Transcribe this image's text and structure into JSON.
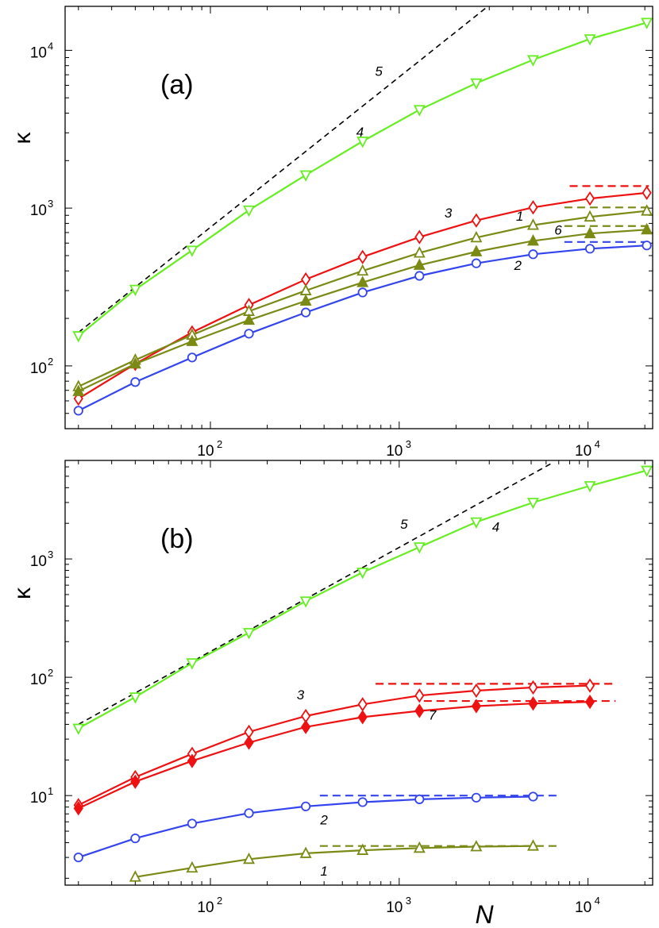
{
  "chart_data": [
    {
      "type": "line",
      "panel_label": "(a)",
      "ylabel": "κ",
      "xlabel": "",
      "x_scale": "log",
      "y_scale": "log",
      "xlim": [
        17,
        22000
      ],
      "ylim": [
        40,
        19000
      ],
      "x_ticks": [
        {
          "value": 100,
          "base": "10",
          "exp": "2"
        },
        {
          "value": 1000,
          "base": "10",
          "exp": "3"
        },
        {
          "value": 10000,
          "base": "10",
          "exp": "4"
        }
      ],
      "y_ticks": [
        {
          "value": 100,
          "base": "10",
          "exp": "2"
        },
        {
          "value": 1000,
          "base": "10",
          "exp": "3"
        },
        {
          "value": 10000,
          "base": "10",
          "exp": "4"
        }
      ],
      "series": [
        {
          "name": "4",
          "color": "#66ee22",
          "marker": "triangle-down-open",
          "x": [
            20,
            40,
            80,
            160,
            320,
            640,
            1280,
            2560,
            5120,
            10240,
            20480
          ],
          "y": [
            155,
            305,
            540,
            970,
            1620,
            2650,
            4200,
            6200,
            8700,
            11800,
            15000
          ]
        },
        {
          "name": "3",
          "color": "#ee1111",
          "marker": "diamond-open",
          "x": [
            20,
            40,
            80,
            160,
            320,
            640,
            1280,
            2560,
            5120,
            10240,
            20480
          ],
          "y": [
            62,
            103,
            163,
            243,
            353,
            490,
            655,
            835,
            1010,
            1150,
            1250
          ]
        },
        {
          "name": "1",
          "color": "#7a8a14",
          "marker": "triangle-up-open",
          "x": [
            20,
            40,
            80,
            160,
            320,
            640,
            1280,
            2560,
            5120,
            10240,
            20480
          ],
          "y": [
            74,
            109,
            157,
            222,
            300,
            400,
            520,
            650,
            780,
            880,
            960
          ]
        },
        {
          "name": "6",
          "color": "#7a8a14",
          "marker": "triangle-up-filled",
          "x": [
            20,
            40,
            80,
            160,
            320,
            640,
            1280,
            2560,
            5120,
            10240,
            20480
          ],
          "y": [
            69,
            103,
            143,
            195,
            258,
            338,
            435,
            530,
            620,
            690,
            730
          ]
        },
        {
          "name": "2",
          "color": "#3344ee",
          "marker": "circle-open",
          "x": [
            20,
            40,
            80,
            160,
            320,
            640,
            1280,
            2560,
            5120,
            10240,
            20480
          ],
          "y": [
            52,
            79,
            113,
            160,
            218,
            292,
            372,
            447,
            510,
            553,
            580
          ]
        }
      ],
      "asymptotes": [
        {
          "name": "3",
          "color": "#ee1111",
          "y": 1380,
          "x_from": 8000,
          "x_to": 21000
        },
        {
          "name": "1",
          "color": "#7a8a14",
          "y": 1010,
          "x_from": 7500,
          "x_to": 21000
        },
        {
          "name": "6",
          "color": "#7a8a14",
          "y": 770,
          "x_from": 7500,
          "x_to": 21000
        },
        {
          "name": "2",
          "color": "#3344ee",
          "y": 610,
          "x_from": 7500,
          "x_to": 21000
        }
      ],
      "power_law": {
        "name": "5",
        "color": "#000000",
        "x": [
          20,
          2950
        ],
        "y": [
          163,
          19000
        ]
      },
      "curve_labels": [
        {
          "text": "5",
          "x": 780,
          "y": 6900
        },
        {
          "text": "4",
          "x": 620,
          "y": 2850
        },
        {
          "text": "3",
          "x": 1820,
          "y": 870
        },
        {
          "text": "1",
          "x": 4350,
          "y": 830
        },
        {
          "text": "6",
          "x": 6950,
          "y": 680
        },
        {
          "text": "2",
          "x": 4250,
          "y": 405
        }
      ]
    },
    {
      "type": "line",
      "panel_label": "(b)",
      "ylabel": "κ",
      "xlabel": "N",
      "x_scale": "log",
      "y_scale": "log",
      "xlim": [
        17,
        22000
      ],
      "ylim": [
        1.75,
        6800
      ],
      "x_ticks": [
        {
          "value": 100,
          "base": "10",
          "exp": "2"
        },
        {
          "value": 1000,
          "base": "10",
          "exp": "3"
        },
        {
          "value": 10000,
          "base": "10",
          "exp": "4"
        }
      ],
      "y_ticks": [
        {
          "value": 10,
          "base": "10",
          "exp": "1"
        },
        {
          "value": 100,
          "base": "10",
          "exp": "2"
        },
        {
          "value": 1000,
          "base": "10",
          "exp": "3"
        }
      ],
      "series": [
        {
          "name": "4",
          "color": "#66ee22",
          "marker": "triangle-down-open",
          "x": [
            20,
            40,
            80,
            160,
            320,
            640,
            1280,
            2560,
            5120,
            10240,
            20480
          ],
          "y": [
            37,
            68,
            132,
            238,
            440,
            770,
            1260,
            2050,
            3000,
            4150,
            5600
          ]
        },
        {
          "name": "3",
          "color": "#ee1111",
          "marker": "diamond-open",
          "x": [
            20,
            40,
            80,
            160,
            320,
            640,
            1280,
            2560,
            5120,
            10240
          ],
          "y": [
            8.3,
            14.3,
            22.5,
            34.5,
            47,
            59,
            70,
            77,
            82,
            85
          ]
        },
        {
          "name": "7",
          "color": "#ee1111",
          "marker": "diamond-filled",
          "x": [
            20,
            40,
            80,
            160,
            320,
            640,
            1280,
            2560,
            5120,
            10240
          ],
          "y": [
            7.8,
            13.1,
            19.6,
            28,
            38,
            46,
            52,
            57,
            60,
            62
          ]
        },
        {
          "name": "2",
          "color": "#3344ee",
          "marker": "circle-open",
          "x": [
            20,
            40,
            80,
            160,
            320,
            640,
            1280,
            2560,
            5120
          ],
          "y": [
            3.0,
            4.35,
            5.8,
            7.1,
            8.1,
            8.8,
            9.3,
            9.6,
            9.8
          ]
        },
        {
          "name": "1",
          "color": "#7a8a14",
          "marker": "triangle-up-open",
          "x": [
            40,
            80,
            160,
            320,
            640,
            1280,
            2560,
            5120
          ],
          "y": [
            2.05,
            2.45,
            2.9,
            3.25,
            3.45,
            3.6,
            3.7,
            3.75
          ]
        }
      ],
      "asymptotes": [
        {
          "name": "3",
          "color": "#ee1111",
          "y": 88,
          "x_from": 750,
          "x_to": 14000
        },
        {
          "name": "7",
          "color": "#ee1111",
          "y": 63,
          "x_from": 1350,
          "x_to": 14000
        },
        {
          "name": "2",
          "color": "#3344ee",
          "y": 10,
          "x_from": 380,
          "x_to": 7100
        },
        {
          "name": "1",
          "color": "#7a8a14",
          "y": 3.75,
          "x_from": 380,
          "x_to": 7100
        }
      ],
      "power_law": {
        "name": "5",
        "color": "#000000",
        "x": [
          20,
          6500
        ],
        "y": [
          40,
          6500
        ]
      },
      "curve_labels": [
        {
          "text": "5",
          "x": 1060,
          "y": 1800
        },
        {
          "text": "4",
          "x": 3250,
          "y": 1700
        },
        {
          "text": "3",
          "x": 300,
          "y": 65
        },
        {
          "text": "7",
          "x": 1500,
          "y": 44
        },
        {
          "text": "2",
          "x": 400,
          "y": 5.7
        },
        {
          "text": "1",
          "x": 400,
          "y": 2.1
        }
      ]
    }
  ]
}
